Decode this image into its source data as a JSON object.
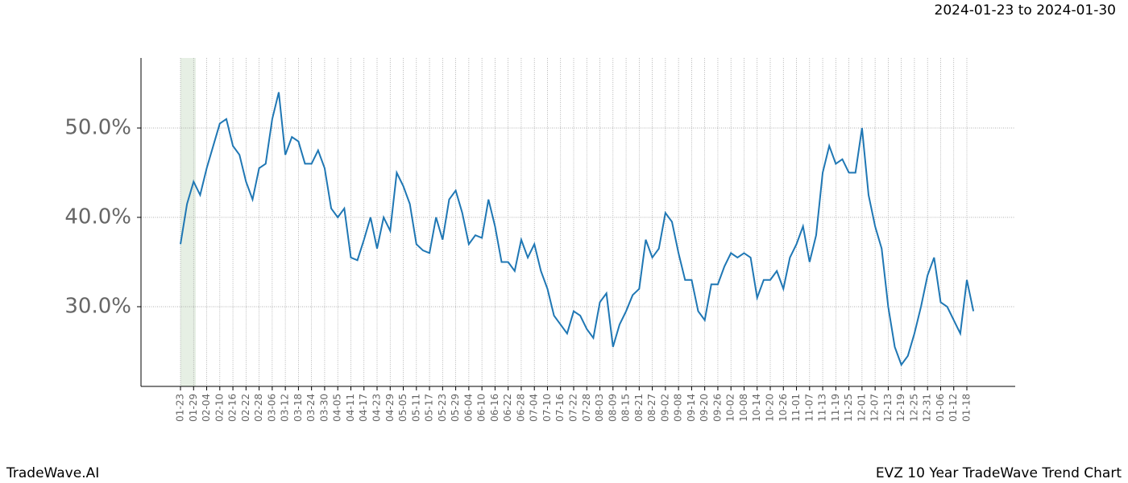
{
  "chart_data": {
    "type": "line",
    "title": "EVZ 10 Year TradeWave Trend Chart",
    "subtitle": "2024-01-23 to 2024-01-30",
    "brand": "TradeWave.AI",
    "categories": [
      "01-23",
      null,
      "01-29",
      null,
      "02-04",
      null,
      "02-10",
      null,
      "02-16",
      null,
      "02-22",
      null,
      "02-28",
      null,
      "03-06",
      null,
      "03-12",
      null,
      "03-18",
      null,
      "03-24",
      null,
      "03-30",
      null,
      "04-05",
      null,
      "04-11",
      null,
      "04-17",
      null,
      "04-23",
      null,
      "04-29",
      null,
      "05-05",
      null,
      "05-11",
      null,
      "05-17",
      null,
      "05-23",
      null,
      "05-29",
      null,
      "06-04",
      null,
      "06-10",
      null,
      "06-16",
      null,
      "06-22",
      null,
      "06-28",
      null,
      "07-04",
      null,
      "07-10",
      null,
      "07-16",
      null,
      "07-22",
      null,
      "07-28",
      null,
      "08-03",
      null,
      "08-09",
      null,
      "08-15",
      null,
      "08-21",
      null,
      "08-27",
      null,
      "09-02",
      null,
      "09-08",
      null,
      "09-14",
      null,
      "09-20",
      null,
      "09-26",
      null,
      "10-02",
      null,
      "10-08",
      null,
      "10-14",
      null,
      "10-20",
      null,
      "10-26",
      null,
      "11-01",
      null,
      "11-07",
      null,
      "11-13",
      null,
      "11-19",
      null,
      "11-25",
      null,
      "12-01",
      null,
      "12-07",
      null,
      "12-13",
      null,
      "12-19",
      null,
      "12-25",
      null,
      "12-31",
      null,
      "01-06",
      null,
      "01-12",
      null,
      "01-18",
      null
    ],
    "series": [
      {
        "name": "EVZ",
        "color": "#1f77b4",
        "values": [
          37,
          41.5,
          44,
          42.5,
          45.5,
          48,
          50.5,
          51,
          48,
          47,
          44,
          42,
          45.5,
          46,
          51,
          54,
          47,
          49,
          48.5,
          46,
          46,
          47.5,
          45.5,
          41,
          40,
          41,
          35.5,
          35.2,
          37.5,
          40,
          36.5,
          40,
          38.5,
          45,
          43.5,
          41.5,
          37,
          36.3,
          36,
          40,
          37.5,
          42,
          43,
          40.5,
          37,
          38,
          37.7,
          42,
          39,
          35,
          35,
          34,
          37.5,
          35.5,
          37,
          34,
          32,
          29,
          28,
          27,
          29.5,
          29,
          27.5,
          26.5,
          30.5,
          31.5,
          25.5,
          28,
          29.5,
          31.3,
          32,
          37.5,
          35.5,
          36.5,
          40.5,
          39.5,
          36,
          33,
          33,
          29.5,
          28.5,
          32.5,
          32.5,
          34.5,
          36,
          35.5,
          36,
          35.5,
          31,
          33,
          33,
          34,
          32,
          35.5,
          37,
          39,
          35,
          38,
          45,
          48,
          46,
          46.5,
          45,
          45,
          50,
          42.5,
          39,
          36.5,
          30,
          25.5,
          23.5,
          24.5,
          27,
          30,
          33.5,
          35.5,
          30.5,
          30,
          28.5,
          27,
          33,
          29.5
        ]
      }
    ],
    "highlight_range": [
      0,
      2.33
    ],
    "highlight_color": "#e6efe4",
    "ylim": [
      21.08,
      57.84
    ],
    "yticks": [
      {
        "value": 30,
        "label": "30.0%"
      },
      {
        "value": 40,
        "label": "40.0%"
      },
      {
        "value": 50,
        "label": "50.0%"
      }
    ],
    "grid": true
  }
}
